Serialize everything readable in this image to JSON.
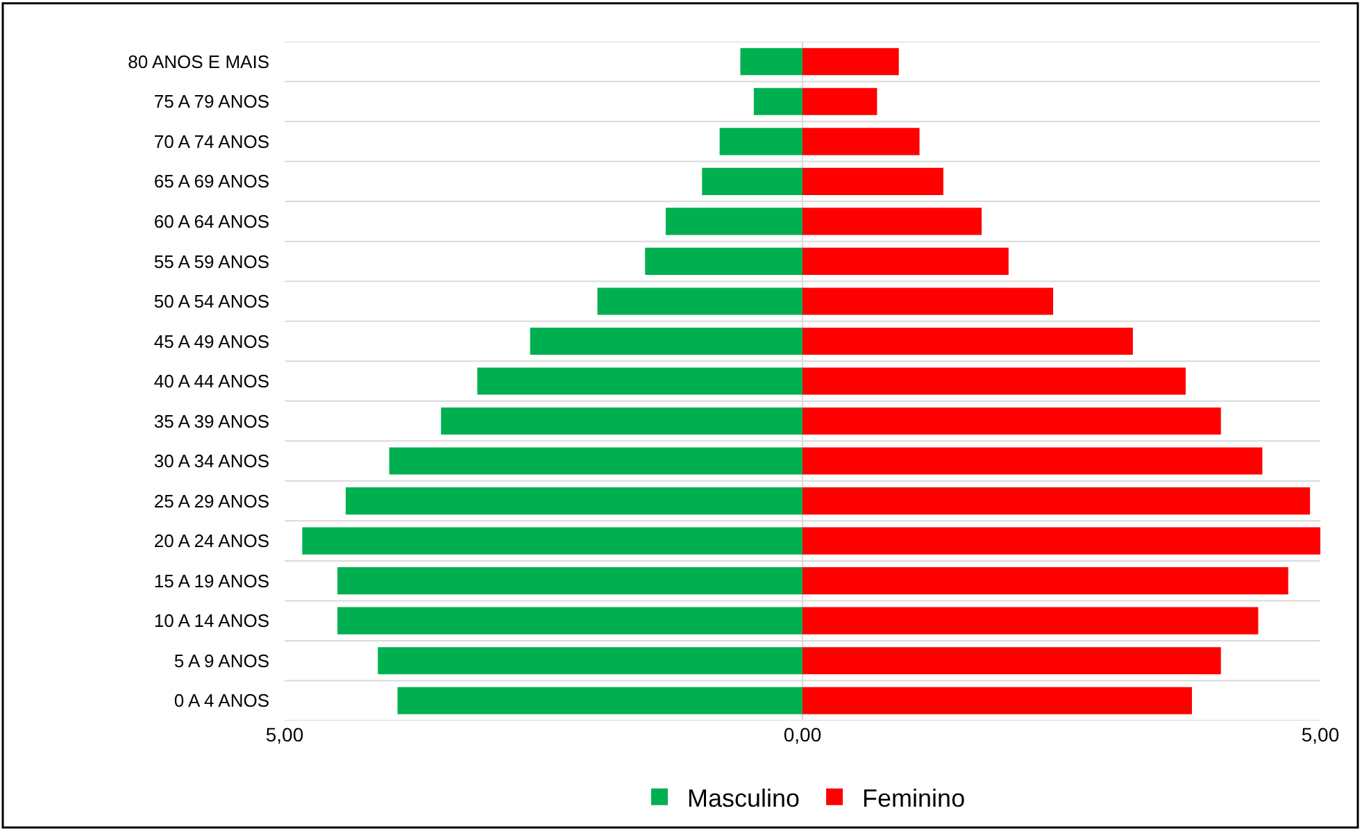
{
  "chart_data": {
    "type": "bar",
    "orientation": "horizontal",
    "categories": [
      "80 ANOS E MAIS",
      "75 A 79 ANOS",
      "70 A 74 ANOS",
      "65 A 69 ANOS",
      "60 A 64 ANOS",
      "55 A 59 ANOS",
      "50 A 54 ANOS",
      "45 A 49 ANOS",
      "40 A 44 ANOS",
      "35 A 39 ANOS",
      "30 A 34 ANOS",
      "25 A 29 ANOS",
      "20 A 24 ANOS",
      "15 A 19 ANOS",
      "10 A 14 ANOS",
      "5 A 9 ANOS",
      "0 A 4 ANOS"
    ],
    "series": [
      {
        "name": "Masculino",
        "color": "#00b050",
        "values": [
          -0.6,
          -0.47,
          -0.8,
          -0.97,
          -1.32,
          -1.52,
          -1.98,
          -2.63,
          -3.14,
          -3.49,
          -3.99,
          -4.41,
          -4.83,
          -4.49,
          -4.49,
          -4.1,
          -3.91
        ]
      },
      {
        "name": "Feminino",
        "color": "#ff0000",
        "values": [
          0.93,
          0.72,
          1.13,
          1.36,
          1.73,
          1.99,
          2.42,
          3.19,
          3.7,
          4.04,
          4.44,
          4.9,
          5.0,
          4.69,
          4.4,
          4.04,
          3.76
        ]
      }
    ],
    "xlim": [
      -5,
      5
    ],
    "xticks": [
      {
        "value": -5,
        "label": "5,00"
      },
      {
        "value": 0,
        "label": "0,00"
      },
      {
        "value": 5,
        "label": "5,00"
      }
    ],
    "grid": true,
    "stacked": true,
    "legend": "bottom"
  }
}
